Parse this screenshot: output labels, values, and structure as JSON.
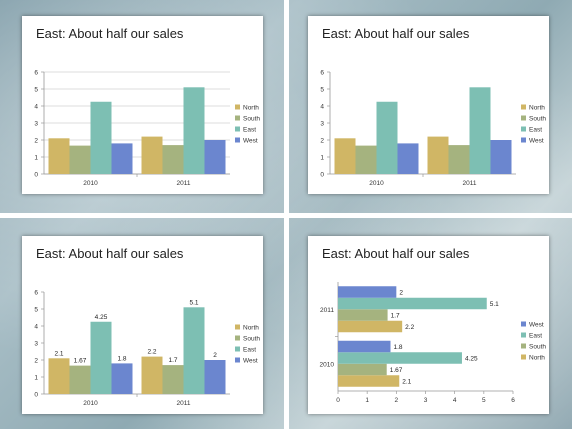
{
  "colors": {
    "North": "#d0b665",
    "South": "#a5b37f",
    "East": "#7dbfb3",
    "West": "#6b86cf"
  },
  "slides": [
    {
      "title": "East: About half our sales"
    },
    {
      "title": "East: About half our sales"
    },
    {
      "title": "East: About half our sales"
    },
    {
      "title": "East: About half our sales"
    }
  ],
  "chart_data": [
    {
      "type": "bar",
      "categories": [
        "2010",
        "2011"
      ],
      "series": [
        {
          "name": "North",
          "values": [
            2.1,
            2.2
          ]
        },
        {
          "name": "South",
          "values": [
            1.67,
            1.7
          ]
        },
        {
          "name": "East",
          "values": [
            4.25,
            5.1
          ]
        },
        {
          "name": "West",
          "values": [
            1.8,
            2
          ]
        }
      ],
      "ylim": [
        0,
        6
      ],
      "yticks": [
        "0",
        "1",
        "2",
        "3",
        "4",
        "5",
        "6"
      ],
      "grid": true,
      "data_labels": false,
      "legend": "right"
    },
    {
      "type": "bar",
      "categories": [
        "2010",
        "2011"
      ],
      "series": [
        {
          "name": "North",
          "values": [
            2.1,
            2.2
          ]
        },
        {
          "name": "South",
          "values": [
            1.67,
            1.7
          ]
        },
        {
          "name": "East",
          "values": [
            4.25,
            5.1
          ]
        },
        {
          "name": "West",
          "values": [
            1.8,
            2
          ]
        }
      ],
      "ylim": [
        0,
        6
      ],
      "yticks": [
        "0",
        "1",
        "2",
        "3",
        "4",
        "5",
        "6"
      ],
      "grid": false,
      "data_labels": false,
      "legend": "right"
    },
    {
      "type": "bar",
      "categories": [
        "2010",
        "2011"
      ],
      "series": [
        {
          "name": "North",
          "values": [
            2.1,
            2.2
          ],
          "labels": [
            "2.1",
            "2.2"
          ]
        },
        {
          "name": "South",
          "values": [
            1.67,
            1.7
          ],
          "labels": [
            "1.67",
            "1.7"
          ]
        },
        {
          "name": "East",
          "values": [
            4.25,
            5.1
          ],
          "labels": [
            "4.25",
            "5.1"
          ]
        },
        {
          "name": "West",
          "values": [
            1.8,
            2
          ],
          "labels": [
            "1.8",
            "2"
          ]
        }
      ],
      "ylim": [
        0,
        6
      ],
      "yticks": [
        "0",
        "1",
        "2",
        "3",
        "4",
        "5",
        "6"
      ],
      "grid": false,
      "data_labels": true,
      "legend": "right"
    },
    {
      "type": "bar",
      "orientation": "horizontal",
      "categories": [
        "2010",
        "2011"
      ],
      "series": [
        {
          "name": "North",
          "values": [
            2.1,
            2.2
          ],
          "labels": [
            "2.1",
            "2.2"
          ]
        },
        {
          "name": "South",
          "values": [
            1.67,
            1.7
          ],
          "labels": [
            "1.67",
            "1.7"
          ]
        },
        {
          "name": "East",
          "values": [
            4.25,
            5.1
          ],
          "labels": [
            "4.25",
            "5.1"
          ]
        },
        {
          "name": "West",
          "values": [
            1.8,
            2
          ],
          "labels": [
            "1.8",
            "2"
          ]
        }
      ],
      "xlim": [
        0,
        6
      ],
      "xticks": [
        "0",
        "1",
        "2",
        "3",
        "4",
        "5",
        "6"
      ],
      "grid": false,
      "data_labels": true,
      "legend": "right",
      "legend_order": [
        "West",
        "East",
        "South",
        "North"
      ]
    }
  ]
}
